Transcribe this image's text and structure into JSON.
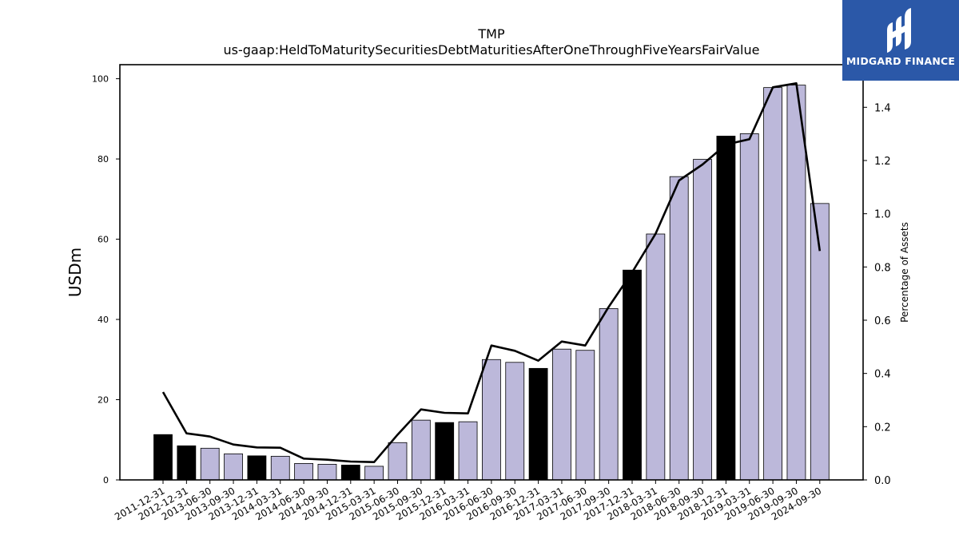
{
  "chart_data": {
    "type": "bar",
    "title": "TMP",
    "subtitle": "us-gaap:HeldToMaturitySecuritiesDebtMaturitiesAfterOneThroughFiveYearsFairValue",
    "ylabel": "USDm",
    "y2label": "Percentage of Assets",
    "ylim": [
      0,
      103.5
    ],
    "y2lim": [
      0,
      1.56
    ],
    "yticks": [
      0,
      20,
      40,
      60,
      80,
      100
    ],
    "y2ticks": [
      0.0,
      0.2,
      0.4,
      0.6,
      0.8,
      1.0,
      1.2,
      1.4
    ],
    "categories": [
      "2011-12-31",
      "2012-12-31",
      "2013-06-30",
      "2013-09-30",
      "2013-12-31",
      "2014-03-31",
      "2014-06-30",
      "2014-09-30",
      "2014-12-31",
      "2015-03-31",
      "2015-06-30",
      "2015-09-30",
      "2015-12-31",
      "2016-03-31",
      "2016-06-30",
      "2016-09-30",
      "2016-12-31",
      "2017-03-31",
      "2017-06-30",
      "2017-09-30",
      "2017-12-31",
      "2018-03-31",
      "2018-06-30",
      "2018-09-30",
      "2018-12-31",
      "2019-03-31",
      "2019-06-30",
      "2019-09-30",
      "2024-09-30"
    ],
    "series": [
      {
        "type": "bar",
        "values": [
          11.3,
          8.5,
          7.9,
          6.5,
          6.0,
          5.9,
          4.1,
          3.9,
          3.7,
          3.4,
          9.3,
          14.9,
          14.3,
          14.5,
          30.0,
          29.3,
          27.8,
          32.6,
          32.3,
          42.7,
          52.3,
          61.3,
          75.6,
          79.9,
          85.7,
          86.3,
          97.8,
          98.4,
          68.9
        ],
        "is_year_end": [
          true,
          true,
          false,
          false,
          true,
          false,
          false,
          false,
          true,
          false,
          false,
          false,
          true,
          false,
          false,
          false,
          true,
          false,
          false,
          false,
          true,
          false,
          false,
          false,
          true,
          false,
          false,
          false,
          false
        ]
      },
      {
        "type": "line",
        "axis": "right",
        "values": [
          0.33,
          0.175,
          0.163,
          0.133,
          0.122,
          0.121,
          0.08,
          0.076,
          0.069,
          0.067,
          0.17,
          0.265,
          0.252,
          0.25,
          0.505,
          0.485,
          0.448,
          0.52,
          0.505,
          0.65,
          0.78,
          0.925,
          1.125,
          1.185,
          1.26,
          1.28,
          1.475,
          1.49,
          0.86
        ]
      }
    ],
    "colors": {
      "bar_year_end": "#000000",
      "bar_other": "#bcb8da",
      "line": "#000000"
    }
  },
  "logo": {
    "text": "MIDGARD FINANCE",
    "background": "#2b58a8"
  }
}
